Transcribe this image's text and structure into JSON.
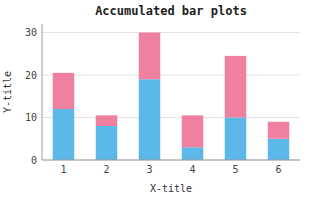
{
  "chart_data": {
    "type": "bar",
    "stacked": true,
    "title": "Accumulated bar plots",
    "xlabel": "X-title",
    "ylabel": "Y-title",
    "categories": [
      1,
      2,
      3,
      4,
      5,
      6
    ],
    "series": [
      {
        "color": "#5BB8E8",
        "values": [
          12,
          8,
          19,
          3,
          10,
          5
        ]
      },
      {
        "color": "#F080A0",
        "values": [
          8.5,
          2.5,
          11,
          7.5,
          14.5,
          4
        ]
      }
    ],
    "ylim": [
      0,
      32
    ],
    "yticks": [
      0,
      10,
      20,
      30
    ],
    "grid": true
  }
}
